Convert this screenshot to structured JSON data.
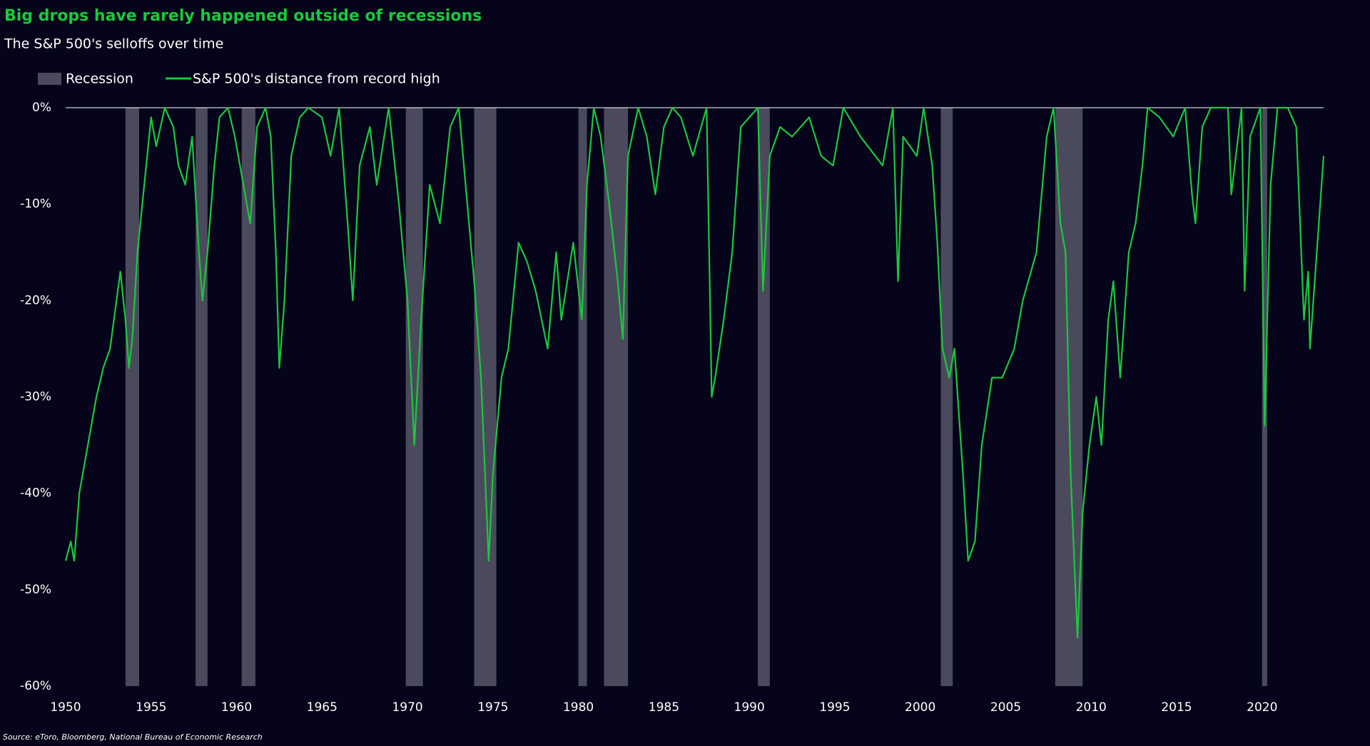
{
  "chart_data": {
    "type": "line",
    "title": "Big drops have rarely happened outside of recessions",
    "subtitle": "The S&P 500's selloffs over time",
    "source": "Source: eToro, Bloomberg, National Bureau of Economic Research",
    "recessions": {
      "name": "Recession",
      "color": "#4a4a5c",
      "periods": [
        [
          1953.5,
          1954.3
        ],
        [
          1957.6,
          1958.3
        ],
        [
          1960.3,
          1961.1
        ],
        [
          1969.9,
          1970.9
        ],
        [
          1973.9,
          1975.2
        ],
        [
          1980.0,
          1980.5
        ],
        [
          1981.5,
          1982.9
        ],
        [
          1990.5,
          1991.2
        ],
        [
          2001.2,
          2001.9
        ],
        [
          2007.9,
          2009.5
        ],
        [
          2020.0,
          2020.3
        ]
      ]
    },
    "x": [
      1950.0,
      1950.3,
      1950.5,
      1950.8,
      1951.2,
      1951.5,
      1951.8,
      1952.2,
      1952.6,
      1952.9,
      1953.2,
      1953.5,
      1953.7,
      1953.9,
      1954.2,
      1954.6,
      1955.0,
      1955.3,
      1955.8,
      1956.3,
      1956.6,
      1957.0,
      1957.4,
      1957.8,
      1958.0,
      1958.3,
      1958.7,
      1959.0,
      1959.5,
      1959.9,
      1960.4,
      1960.8,
      1961.2,
      1961.7,
      1962.0,
      1962.3,
      1962.5,
      1962.8,
      1963.2,
      1963.7,
      1964.2,
      1965.0,
      1965.5,
      1966.0,
      1966.5,
      1966.8,
      1967.2,
      1967.8,
      1968.2,
      1968.9,
      1969.5,
      1970.0,
      1970.4,
      1970.8,
      1971.3,
      1971.9,
      1972.5,
      1973.0,
      1973.5,
      1973.9,
      1974.3,
      1974.75,
      1975.0,
      1975.5,
      1975.9,
      1976.5,
      1977.0,
      1977.5,
      1978.2,
      1978.7,
      1979.0,
      1979.7,
      1980.2,
      1980.5,
      1980.9,
      1981.3,
      1981.8,
      1982.3,
      1982.6,
      1982.9,
      1983.5,
      1984.0,
      1984.5,
      1985.0,
      1985.5,
      1986.0,
      1986.7,
      1987.5,
      1987.8,
      1988.0,
      1988.5,
      1989.0,
      1989.5,
      1990.0,
      1990.5,
      1990.8,
      1991.2,
      1991.8,
      1992.5,
      1993.5,
      1994.2,
      1994.9,
      1995.5,
      1996.5,
      1997.8,
      1998.4,
      1998.7,
      1999.0,
      1999.8,
      2000.2,
      2000.7,
      2001.0,
      2001.3,
      2001.7,
      2002.0,
      2002.5,
      2002.8,
      2003.2,
      2003.6,
      2004.2,
      2004.8,
      2005.5,
      2006.0,
      2006.8,
      2007.4,
      2007.8,
      2008.2,
      2008.5,
      2008.8,
      2009.2,
      2009.5,
      2009.9,
      2010.3,
      2010.6,
      2011.0,
      2011.3,
      2011.7,
      2012.2,
      2012.6,
      2013.0,
      2013.3,
      2014.0,
      2014.8,
      2015.5,
      2015.9,
      2016.1,
      2016.5,
      2017.0,
      2018.0,
      2018.2,
      2018.8,
      2018.98,
      2019.3,
      2019.9,
      2020.15,
      2020.5,
      2020.9,
      2021.5,
      2022.0,
      2022.45,
      2022.7,
      2022.8,
      2023.2,
      2023.6
    ],
    "series": [
      {
        "name": "S&P 500's distance from record high",
        "color": "#19c93c",
        "values": [
          -47,
          -45,
          -47,
          -40,
          -36,
          -33,
          -30,
          -27,
          -25,
          -21,
          -17,
          -22,
          -27,
          -24,
          -15,
          -8,
          -1,
          -4,
          0,
          -2,
          -6,
          -8,
          -3,
          -15,
          -20,
          -15,
          -6,
          -1,
          0,
          -3,
          -8,
          -12,
          -2,
          0,
          -3,
          -15,
          -27,
          -20,
          -5,
          -1,
          0,
          -1,
          -5,
          0,
          -12,
          -20,
          -6,
          -2,
          -8,
          0,
          -10,
          -20,
          -35,
          -22,
          -8,
          -12,
          -2,
          0,
          -10,
          -18,
          -28,
          -47,
          -38,
          -28,
          -25,
          -14,
          -16,
          -19,
          -25,
          -15,
          -22,
          -14,
          -22,
          -8,
          0,
          -3,
          -10,
          -18,
          -24,
          -5,
          0,
          -3,
          -9,
          -2,
          0,
          -1,
          -5,
          0,
          -30,
          -28,
          -22,
          -15,
          -2,
          -1,
          0,
          -19,
          -5,
          -2,
          -3,
          -1,
          -5,
          -6,
          0,
          -3,
          -6,
          0,
          -18,
          -3,
          -5,
          0,
          -6,
          -14,
          -25,
          -28,
          -25,
          -38,
          -47,
          -45,
          -35,
          -28,
          -28,
          -25,
          -20,
          -15,
          -3,
          0,
          -12,
          -15,
          -38,
          -55,
          -42,
          -35,
          -30,
          -35,
          -22,
          -18,
          -28,
          -15,
          -12,
          -6,
          0,
          -1,
          -3,
          0,
          -9,
          -12,
          -2,
          0,
          0,
          -9,
          0,
          -19,
          -3,
          0,
          -33,
          -8,
          0,
          0,
          -2,
          -22,
          -17,
          -25,
          -15,
          -5
        ]
      }
    ],
    "xlim": [
      1950,
      2023.6
    ],
    "ylim": [
      -60,
      0
    ],
    "xticks": [
      1950,
      1955,
      1960,
      1965,
      1970,
      1975,
      1980,
      1985,
      1990,
      1995,
      2000,
      2005,
      2010,
      2015,
      2020
    ],
    "yticks": [
      {
        "value": -60,
        "label": "-60%"
      },
      {
        "value": -50,
        "label": "-50%"
      },
      {
        "value": -40,
        "label": "-40%"
      },
      {
        "value": -30,
        "label": "-30%"
      },
      {
        "value": -20,
        "label": "-20%"
      },
      {
        "value": -10,
        "label": "-10%"
      },
      {
        "value": 0,
        "label": "0%"
      }
    ]
  }
}
